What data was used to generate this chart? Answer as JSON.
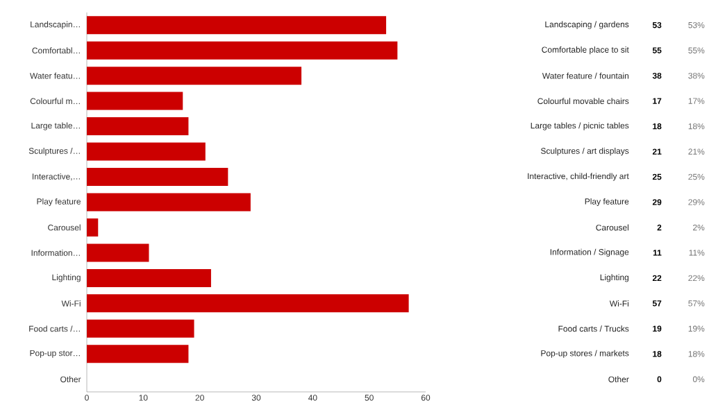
{
  "chart_data": [
    {
      "type": "bar",
      "orientation": "horizontal",
      "categories": [
        "Landscapin…",
        "Comfortabl…",
        "Water featu…",
        "Colourful m…",
        "Large table…",
        "Sculptures /…",
        "Interactive,…",
        "Play feature",
        "Carousel",
        "Information…",
        "Lighting",
        "Wi-Fi",
        "Food carts /…",
        "Pop-up stor…",
        "Other"
      ],
      "values": [
        53,
        55,
        38,
        17,
        18,
        21,
        25,
        29,
        2,
        11,
        22,
        57,
        19,
        18,
        0
      ],
      "color": "#cc0000",
      "xlim": [
        0,
        60
      ],
      "xticks": [
        0,
        10,
        20,
        30,
        40,
        50,
        60
      ],
      "data_labels": true
    },
    {
      "type": "other",
      "categories": [
        "Landscaping / gardens",
        "Comfortable place to sit",
        "Water feature / fountain",
        "Colourful movable chairs",
        "Large tables / picnic tables",
        "Sculptures / art displays",
        "Interactive, child-friendly art",
        "Play feature",
        "Carousel",
        "Information / Signage",
        "Lighting",
        "Wi-Fi",
        "Food carts / Trucks",
        "Pop-up stores / markets",
        "Other"
      ],
      "annotations": [
        "53%",
        "55%",
        "38%",
        "17%",
        "18%",
        "21%",
        "25%",
        "29%",
        "2%",
        "11%",
        "22%",
        "57%",
        "19%",
        "18%",
        "0%"
      ]
    }
  ]
}
